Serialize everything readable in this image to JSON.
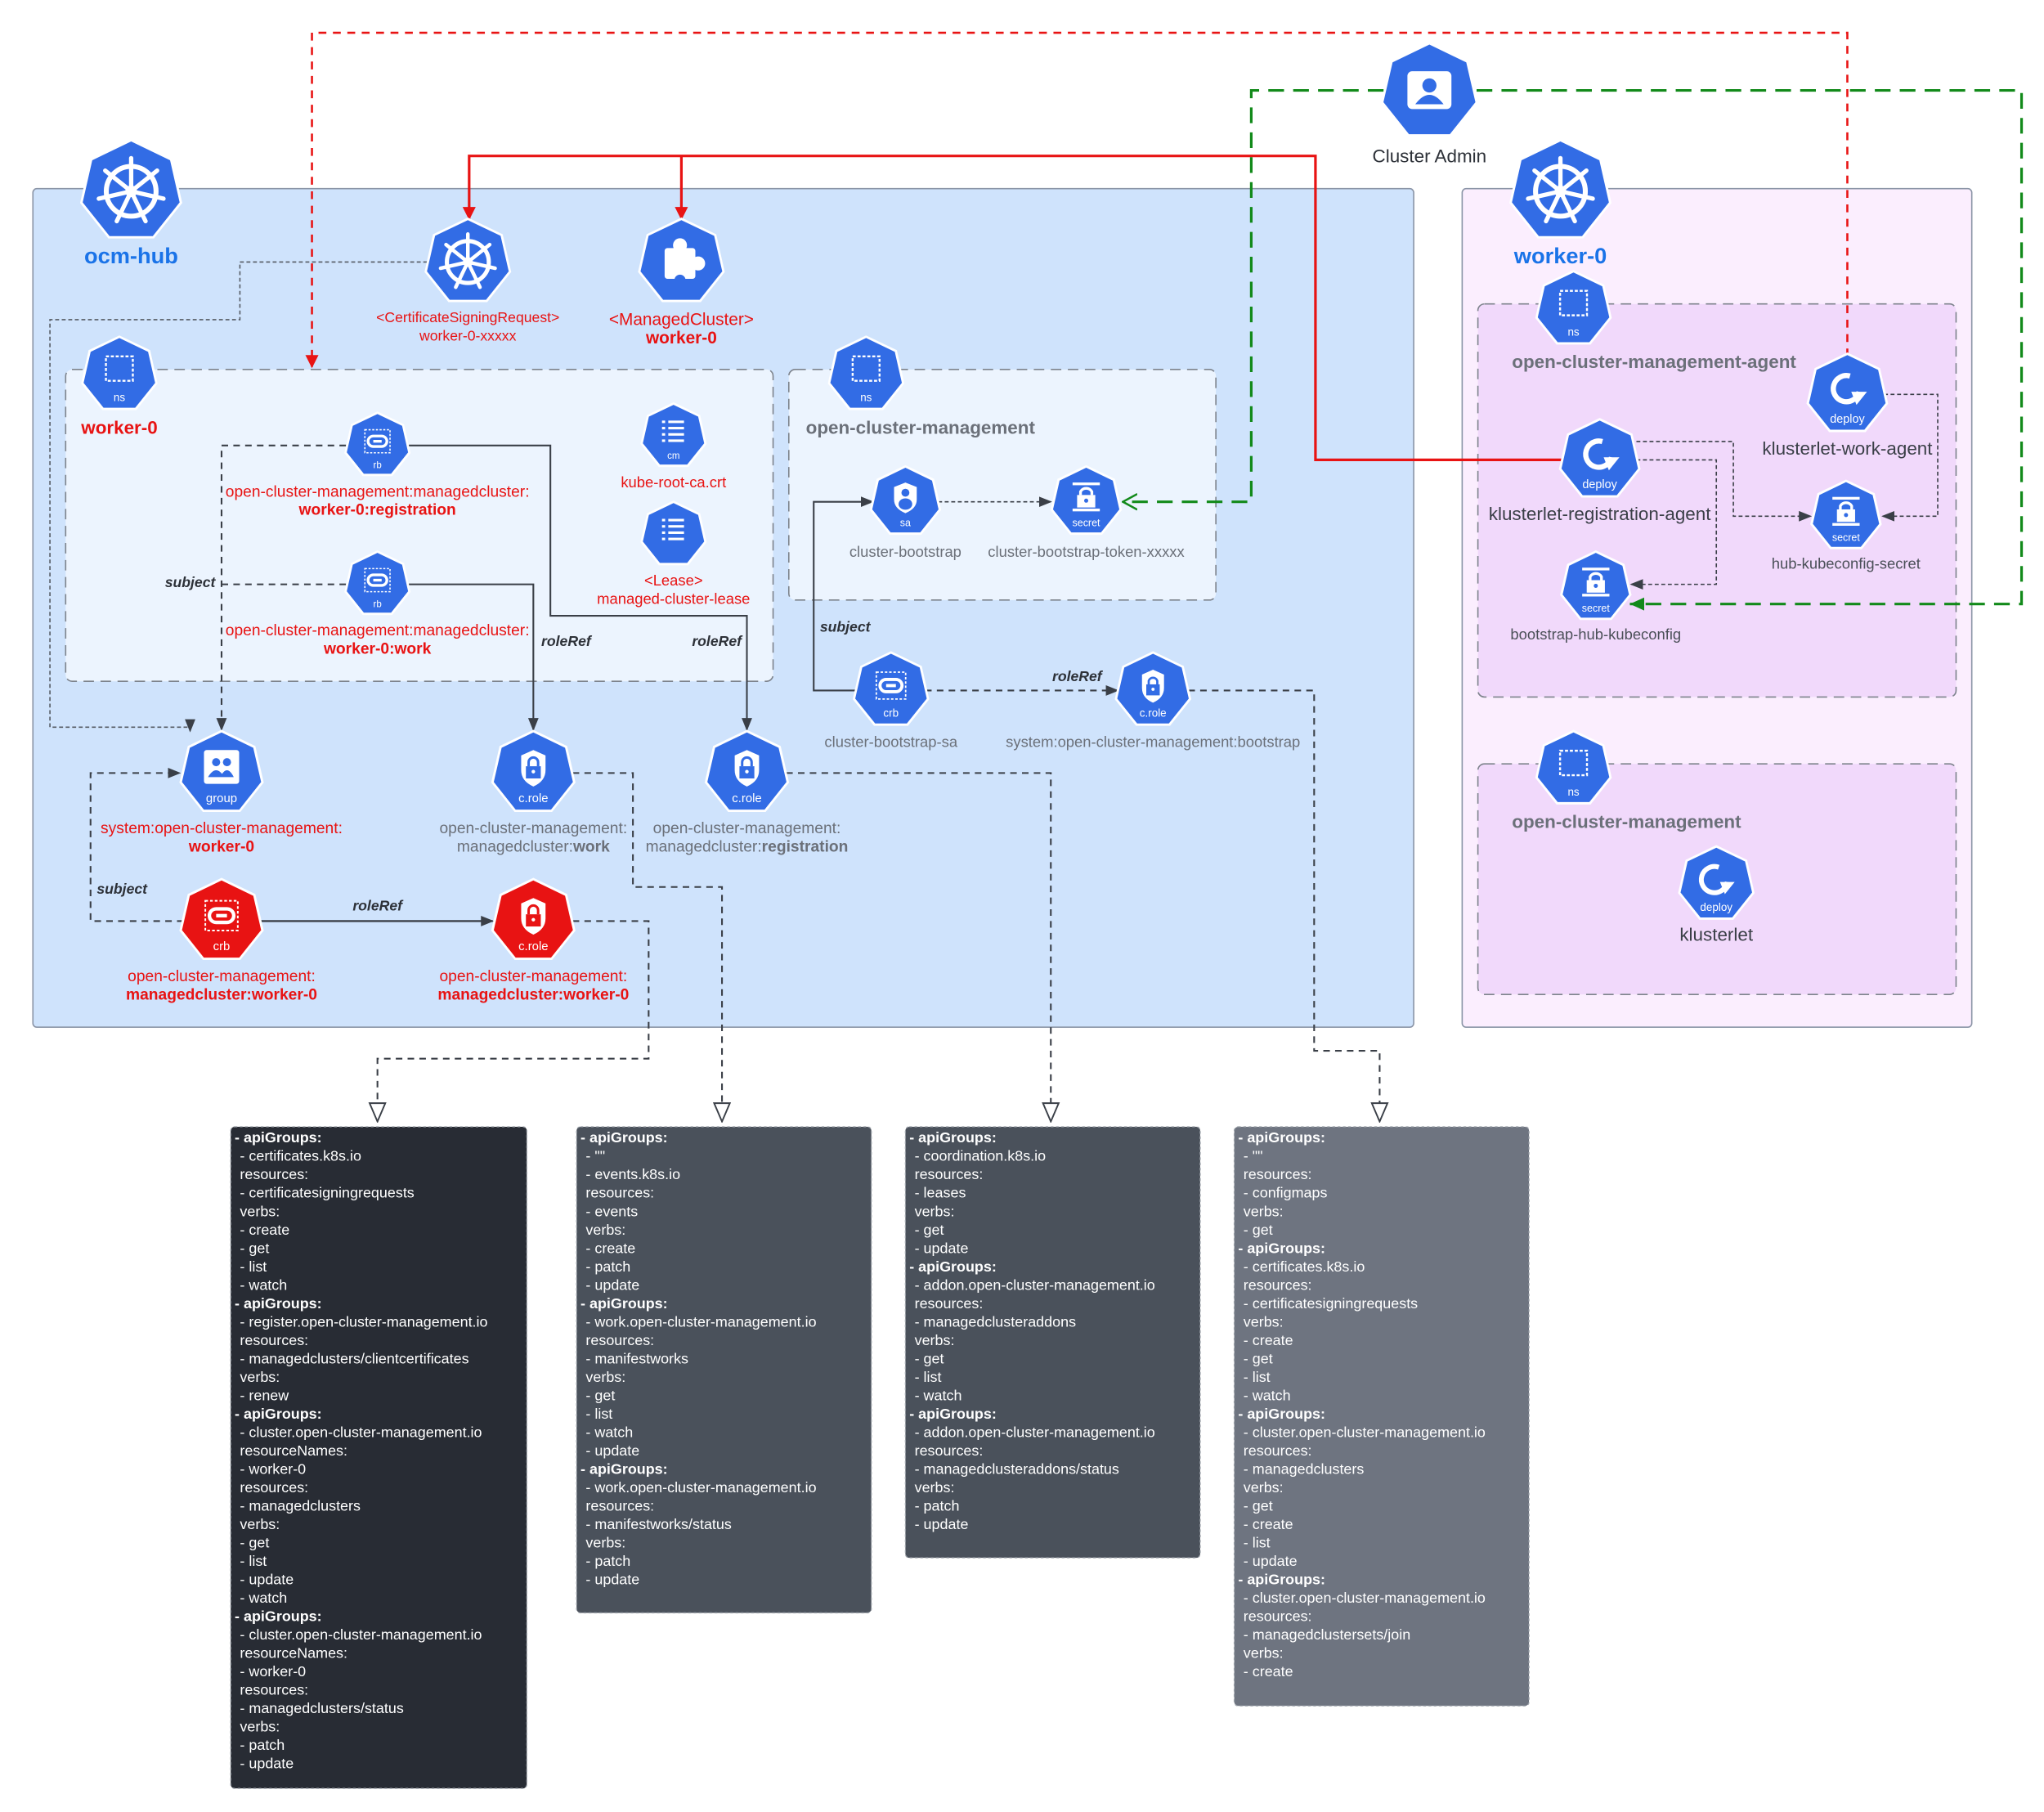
{
  "colors": {
    "k8s_blue": "#326ce5",
    "alert_red": "#e81313",
    "hub_bg": "#cfe3fc",
    "worker_bg": "#fbeefe",
    "agent_ns_bg": "#f1d9fb",
    "ns_bg": "#ecf4fe",
    "title_blue": "#1a73e8",
    "label_gray": "#6b7079",
    "green": "#128a1a"
  },
  "clusters": {
    "hub": {
      "title": "ocm-hub"
    },
    "worker": {
      "title": "worker-0"
    },
    "admin": {
      "title": "Cluster Admin"
    }
  },
  "namespaces": {
    "hub_worker": "worker-0",
    "hub_ocm": "open-cluster-management",
    "agent": "open-cluster-management-agent",
    "worker_ocm": "open-cluster-management"
  },
  "nodes": {
    "csr": {
      "icon": "helm-wheel-icon",
      "badge": "",
      "color": "#326ce5",
      "text_color": "#e81313",
      "lines": [
        {
          "t": "<CertificateSigningRequest>"
        },
        {
          "t": "worker-0-xxxxx"
        }
      ]
    },
    "mc": {
      "icon": "puzzle-icon",
      "badge": "",
      "color": "#326ce5",
      "text_color": "#e81313",
      "lines": [
        {
          "t": "<ManagedCluster>"
        },
        {
          "b": "worker-0"
        }
      ]
    },
    "ns_w0": {
      "icon": "namespace-icon",
      "badge": "ns",
      "color": "#326ce5"
    },
    "rb_reg": {
      "icon": "link-icon",
      "badge": "rb",
      "color": "#326ce5",
      "text_color": "#e81313",
      "lines": [
        {
          "t": "open-cluster-management:managedcluster:"
        },
        {
          "b": "worker-0:registration"
        }
      ]
    },
    "rb_work": {
      "icon": "link-icon",
      "badge": "rb",
      "color": "#326ce5",
      "text_color": "#e81313",
      "lines": [
        {
          "t": "open-cluster-management:managedcluster:"
        },
        {
          "b": "worker-0:work"
        }
      ]
    },
    "cm_ca": {
      "icon": "list-icon",
      "badge": "cm",
      "color": "#326ce5",
      "text_color": "#e81313",
      "lines": [
        {
          "t": "kube-root-ca.crt"
        }
      ]
    },
    "lease": {
      "icon": "list-icon",
      "badge": "",
      "color": "#326ce5",
      "text_color": "#e81313",
      "lines": [
        {
          "t": "<Lease>"
        },
        {
          "t": "managed-cluster-lease"
        }
      ]
    },
    "ns_ocm": {
      "icon": "namespace-icon",
      "badge": "ns",
      "color": "#326ce5"
    },
    "sa": {
      "icon": "user-shield-icon",
      "badge": "sa",
      "color": "#326ce5",
      "text_color": "#6b7079",
      "lines": [
        {
          "t": "cluster-bootstrap"
        }
      ]
    },
    "token": {
      "icon": "lock-icon",
      "badge": "secret",
      "color": "#326ce5",
      "text_color": "#6b7079",
      "lines": [
        {
          "t": "cluster-bootstrap-token-xxxxx"
        }
      ]
    },
    "crb_boot": {
      "icon": "link-icon",
      "badge": "crb",
      "color": "#326ce5",
      "text_color": "#6b7079",
      "lines": [
        {
          "t": "cluster-bootstrap-sa"
        }
      ]
    },
    "cr_boot": {
      "icon": "shield-lock-icon",
      "badge": "c.role",
      "color": "#326ce5",
      "text_color": "#6b7079",
      "lines": [
        {
          "t": "system:open-cluster-management:bootstrap"
        }
      ]
    },
    "group": {
      "icon": "group-icon",
      "badge": "group",
      "color": "#326ce5",
      "text_color": "#e81313",
      "lines": [
        {
          "t": "system:open-cluster-management:"
        },
        {
          "b": "worker-0"
        }
      ]
    },
    "cr_work": {
      "icon": "shield-lock-icon",
      "badge": "c.role",
      "color": "#326ce5",
      "text_color": "#6b7079",
      "lines": [
        {
          "t": "open-cluster-management:"
        },
        {
          "t": "managedcluster:",
          "b": "work"
        }
      ]
    },
    "cr_reg": {
      "icon": "shield-lock-icon",
      "badge": "c.role",
      "color": "#326ce5",
      "text_color": "#6b7079",
      "lines": [
        {
          "t": "open-cluster-management:"
        },
        {
          "t": "managedcluster:",
          "b": "registration"
        }
      ]
    },
    "crb_mc": {
      "icon": "link-icon",
      "badge": "crb",
      "color": "#e81313",
      "text_color": "#e81313",
      "lines": [
        {
          "t": "open-cluster-management:"
        },
        {
          "b": "managedcluster:worker-0"
        }
      ]
    },
    "cr_mc": {
      "icon": "shield-lock-icon",
      "badge": "c.role",
      "color": "#e81313",
      "text_color": "#e81313",
      "lines": [
        {
          "t": "open-cluster-management:"
        },
        {
          "b": "managedcluster:worker-0"
        }
      ]
    },
    "ns_agent": {
      "icon": "namespace-icon",
      "badge": "ns",
      "color": "#326ce5"
    },
    "work_agent": {
      "icon": "deploy-icon",
      "badge": "deploy",
      "color": "#326ce5",
      "text_color": "#3a3f47",
      "lines": [
        {
          "t": "klusterlet-work-agent"
        }
      ]
    },
    "reg_agent": {
      "icon": "deploy-icon",
      "badge": "deploy",
      "color": "#326ce5",
      "text_color": "#3a3f47",
      "lines": [
        {
          "t": "klusterlet-registration-agent"
        }
      ]
    },
    "hub_secret": {
      "icon": "lock-icon",
      "badge": "secret",
      "color": "#326ce5",
      "text_color": "#4b5058",
      "lines": [
        {
          "t": "hub-kubeconfig-secret"
        }
      ]
    },
    "boot_secret": {
      "icon": "lock-icon",
      "badge": "secret",
      "color": "#326ce5",
      "text_color": "#4b5058",
      "lines": [
        {
          "t": "bootstrap-hub-kubeconfig"
        }
      ]
    },
    "ns_wocm": {
      "icon": "namespace-icon",
      "badge": "ns",
      "color": "#326ce5"
    },
    "klusterlet": {
      "icon": "deploy-icon",
      "badge": "deploy",
      "color": "#326ce5",
      "text_color": "#3a3f47",
      "lines": [
        {
          "t": "klusterlet"
        }
      ]
    }
  },
  "edge_labels": [
    "subject",
    "roleRef",
    "roleRef",
    "subject",
    "roleRef",
    "subject",
    "roleRef"
  ],
  "rule_boxes": [
    {
      "bg": "#282c34",
      "lines": [
        "- apiGroups:",
        "  - certificates.k8s.io",
        "  resources:",
        "  - certificatesigningrequests",
        "  verbs:",
        "  - create",
        "  - get",
        "  - list",
        "  - watch",
        "- apiGroups:",
        "  - register.open-cluster-management.io",
        "  resources:",
        "  - managedclusters/clientcertificates",
        "  verbs:",
        "  - renew",
        "- apiGroups:",
        "  - cluster.open-cluster-management.io",
        "  resourceNames:",
        "  - worker-0",
        "  resources:",
        "  - managedclusters",
        "  verbs:",
        "  - get",
        "  - list",
        "  - update",
        "  - watch",
        "- apiGroups:",
        "  - cluster.open-cluster-management.io",
        "  resourceNames:",
        "  - worker-0",
        "  resources:",
        "  - managedclusters/status",
        "  verbs:",
        "  - patch",
        "  - update"
      ]
    },
    {
      "bg": "#4a515b",
      "lines": [
        "- apiGroups:",
        "  - \"\"",
        "  - events.k8s.io",
        "  resources:",
        "  - events",
        "  verbs:",
        "  - create",
        "  - patch",
        "  - update",
        "- apiGroups:",
        "  - work.open-cluster-management.io",
        "  resources:",
        "  - manifestworks",
        "  verbs:",
        "  - get",
        "  - list",
        "  - watch",
        "  - update",
        "- apiGroups:",
        "  - work.open-cluster-management.io",
        "  resources:",
        "  - manifestworks/status",
        "  verbs:",
        "  - patch",
        "  - update"
      ]
    },
    {
      "bg": "#4a515b",
      "lines": [
        "- apiGroups:",
        "  - coordination.k8s.io",
        "  resources:",
        "  - leases",
        "  verbs:",
        "  - get",
        "  - update",
        "- apiGroups:",
        "  - addon.open-cluster-management.io",
        "  resources:",
        "  - managedclusteraddons",
        "  verbs:",
        "  - get",
        "  - list",
        "  - watch",
        "- apiGroups:",
        "  - addon.open-cluster-management.io",
        "  resources:",
        "  - managedclusteraddons/status",
        "  verbs:",
        "  - patch",
        "  - update"
      ]
    },
    {
      "bg": "#6e7480",
      "lines": [
        "- apiGroups:",
        "  - \"\"",
        "  resources:",
        "  - configmaps",
        "  verbs:",
        "  - get",
        "- apiGroups:",
        "  - certificates.k8s.io",
        "  resources:",
        "  - certificatesigningrequests",
        "  verbs:",
        "  - create",
        "  - get",
        "  - list",
        "  - watch",
        "- apiGroups:",
        "  - cluster.open-cluster-management.io",
        "  resources:",
        "  - managedclusters",
        "  verbs:",
        "  - get",
        "  - create",
        "  - list",
        "  - update",
        "- apiGroups:",
        "  - cluster.open-cluster-management.io",
        "  resources:",
        "  - managedclustersets/join",
        "  verbs:",
        "  - create"
      ]
    }
  ]
}
